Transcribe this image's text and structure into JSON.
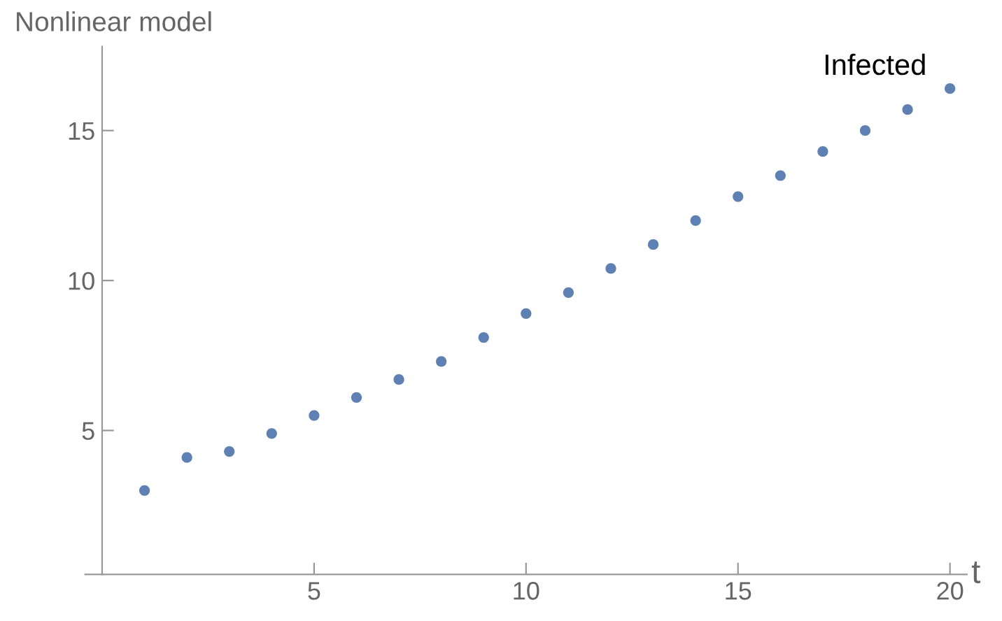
{
  "chart_data": {
    "type": "scatter",
    "title": "Nonlinear model",
    "xlabel": "t",
    "x": [
      1,
      2,
      3,
      4,
      5,
      6,
      7,
      8,
      9,
      10,
      11,
      12,
      13,
      14,
      15,
      16,
      17,
      18,
      19,
      20
    ],
    "series": [
      {
        "name": "Infected",
        "color": "#5e81b5",
        "values": [
          3.0,
          4.1,
          4.3,
          4.9,
          5.5,
          6.1,
          6.7,
          7.3,
          8.1,
          8.9,
          9.6,
          10.4,
          11.2,
          12.0,
          12.8,
          13.5,
          14.3,
          15.0,
          15.7,
          16.4
        ]
      }
    ],
    "xlim": [
      -0.4,
      20.4
    ],
    "ylim": [
      0.2,
      17.8
    ],
    "xticks": [
      5,
      10,
      15,
      20
    ],
    "yticks": [
      5,
      10,
      15
    ],
    "marker": "circle",
    "grid": false,
    "legend": false
  }
}
